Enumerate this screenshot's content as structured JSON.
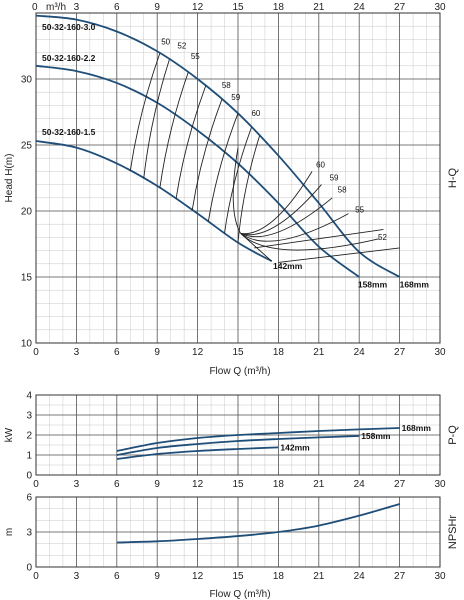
{
  "chart_data": [
    {
      "id": "hq",
      "type": "line",
      "ylabel": "Head H(m)",
      "xlabel_top": "m³/h",
      "side_label": "H-Q",
      "xlim": [
        0,
        30
      ],
      "ylim": [
        10,
        35
      ],
      "x_ticks": [
        0,
        3,
        6,
        9,
        12,
        15,
        18,
        21,
        24,
        27,
        30
      ],
      "y_ticks": [
        10,
        15,
        20,
        25,
        30
      ],
      "curves": [
        {
          "name": "50-32-160-3.0",
          "x": [
            0,
            3,
            6,
            9,
            12,
            15,
            18,
            21,
            24,
            27
          ],
          "y": [
            34.8,
            34.5,
            33.6,
            32.1,
            30.0,
            27.4,
            24.2,
            20.6,
            16.9,
            15.0
          ]
        },
        {
          "name": "50-32-160-2.2",
          "x": [
            0,
            3,
            6,
            9,
            12,
            15,
            18,
            21,
            24
          ],
          "y": [
            31.0,
            30.6,
            29.7,
            28.2,
            26.1,
            23.6,
            20.6,
            17.3,
            15.0
          ]
        },
        {
          "name": "50-32-160-1.5",
          "x": [
            0,
            3,
            6,
            9,
            12,
            15,
            17.5
          ],
          "y": [
            25.3,
            24.8,
            23.6,
            21.9,
            19.8,
            17.6,
            16.2
          ]
        }
      ],
      "impeller_labels": [
        "142mm",
        "158mm",
        "168mm"
      ],
      "efficiency_labels": [
        "50",
        "52",
        "55",
        "58",
        "59",
        "60"
      ],
      "efficiency_labels_lower": [
        "60",
        "59",
        "58",
        "55",
        "52"
      ]
    },
    {
      "id": "pq",
      "type": "line",
      "ylabel": "kW",
      "side_label": "P-Q",
      "xlim": [
        0,
        30
      ],
      "ylim": [
        0,
        4
      ],
      "x_ticks": [
        0,
        3,
        6,
        9,
        12,
        15,
        18,
        21,
        24,
        27,
        30
      ],
      "y_ticks": [
        0,
        1,
        2,
        3,
        4
      ],
      "curves": [
        {
          "name": "168mm",
          "x": [
            6,
            9,
            12,
            15,
            18,
            21,
            24,
            27
          ],
          "y": [
            1.2,
            1.6,
            1.85,
            2.0,
            2.1,
            2.2,
            2.28,
            2.35
          ]
        },
        {
          "name": "158mm",
          "x": [
            6,
            9,
            12,
            15,
            18,
            21,
            24
          ],
          "y": [
            1.0,
            1.35,
            1.55,
            1.7,
            1.8,
            1.88,
            1.95
          ]
        },
        {
          "name": "142mm",
          "x": [
            6,
            9,
            12,
            15,
            18
          ],
          "y": [
            0.8,
            1.05,
            1.2,
            1.3,
            1.38
          ]
        }
      ]
    },
    {
      "id": "npsh",
      "type": "line",
      "ylabel": "m",
      "side_label": "NPSHr",
      "xlabel": "Flow Q (m³/h)",
      "xlim": [
        0,
        30
      ],
      "ylim": [
        0,
        6
      ],
      "x_ticks": [
        0,
        3,
        6,
        9,
        12,
        15,
        18,
        21,
        24,
        27,
        30
      ],
      "y_ticks": [
        0,
        3,
        6
      ],
      "curves": [
        {
          "name": "NPSHr",
          "x": [
            6,
            9,
            12,
            15,
            18,
            21,
            24,
            27
          ],
          "y": [
            2.1,
            2.2,
            2.4,
            2.65,
            3.0,
            3.55,
            4.4,
            5.4
          ]
        }
      ]
    }
  ],
  "labels": {
    "flow_xlabel": "Flow Q (m³/h)",
    "top_unit": "m³/h"
  },
  "colors": {
    "curve": "#1f4e79",
    "grid_major": "#555555",
    "grid_minor": "#c8c8c8",
    "iso": "#222222"
  }
}
